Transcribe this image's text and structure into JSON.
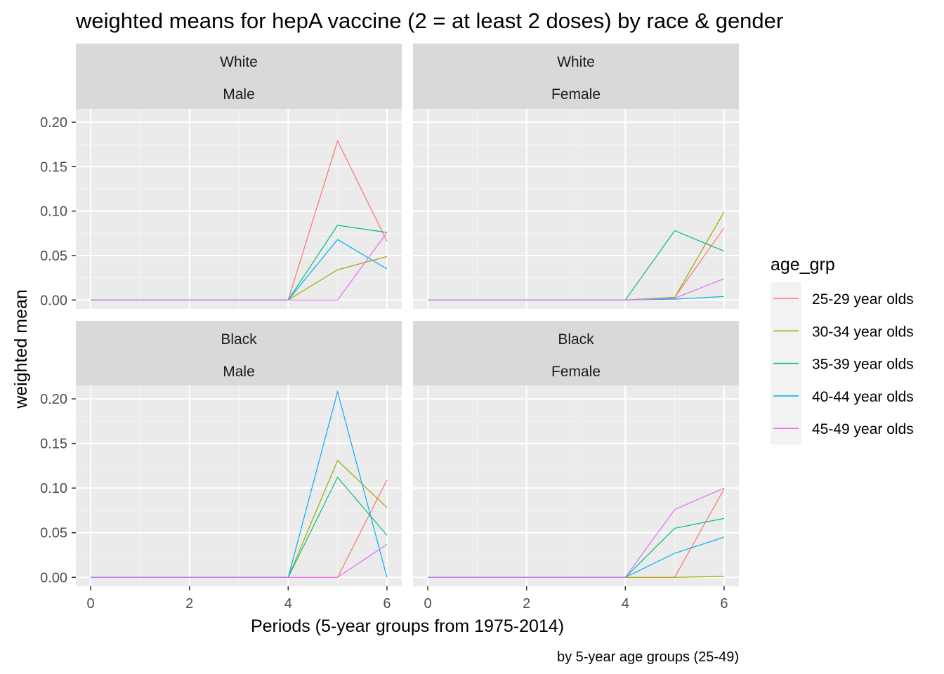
{
  "chart_data": {
    "type": "line",
    "title": "weighted means for hepA vaccine (2 = at least 2 doses)  by race & gender",
    "xlabel": "Periods (5-year groups from 1975-2014)",
    "ylabel": "weighted mean",
    "caption": "by 5-year age groups (25-49)",
    "xlim": [
      -0.3,
      6.3
    ],
    "ylim": [
      -0.01,
      0.215
    ],
    "x_ticks": [
      0,
      2,
      4,
      6
    ],
    "x_tick_labels": [
      "0",
      "2",
      "4",
      "6"
    ],
    "y_ticks": [
      0,
      0.05,
      0.1,
      0.15,
      0.2
    ],
    "y_tick_labels": [
      "0.00",
      "0.05",
      "0.10",
      "0.15",
      "0.20"
    ],
    "grid": true,
    "legend": {
      "title": "age_grp",
      "position": "right",
      "entries": [
        "25-29 year olds",
        "30-34 year olds",
        "35-39 year olds",
        "40-44 year olds",
        "45-49 year olds"
      ]
    },
    "colors": [
      "#F8766D",
      "#A3A500",
      "#00BF7D",
      "#00B0F6",
      "#E76BF3"
    ],
    "x": [
      0,
      1,
      2,
      3,
      4,
      5,
      6
    ],
    "panels": [
      {
        "strip": [
          "White",
          "Male"
        ],
        "series": [
          {
            "name": "25-29 year olds",
            "values": [
              0,
              0,
              0,
              0,
              0,
              0.179,
              0.066
            ]
          },
          {
            "name": "30-34 year olds",
            "values": [
              0,
              0,
              0,
              0,
              0,
              0.034,
              0.049
            ]
          },
          {
            "name": "35-39 year olds",
            "values": [
              0,
              0,
              0,
              0,
              0,
              0.084,
              0.076
            ]
          },
          {
            "name": "40-44 year olds",
            "values": [
              0,
              0,
              0,
              0,
              0,
              0.068,
              0.035
            ]
          },
          {
            "name": "45-49 year olds",
            "values": [
              0,
              0,
              0,
              0,
              0,
              0.0,
              0.076
            ]
          }
        ]
      },
      {
        "strip": [
          "White",
          "Female"
        ],
        "series": [
          {
            "name": "25-29 year olds",
            "values": [
              0,
              0,
              0,
              0,
              0,
              0.003,
              0.081
            ]
          },
          {
            "name": "30-34 year olds",
            "values": [
              0,
              0,
              0,
              0,
              0,
              0.003,
              0.099
            ]
          },
          {
            "name": "35-39 year olds",
            "values": [
              0,
              0,
              0,
              0,
              0,
              0.078,
              0.055
            ]
          },
          {
            "name": "40-44 year olds",
            "values": [
              0,
              0,
              0,
              0,
              0,
              0.001,
              0.004
            ]
          },
          {
            "name": "45-49 year olds",
            "values": [
              0,
              0,
              0,
              0,
              0,
              0.002,
              0.024
            ]
          }
        ]
      },
      {
        "strip": [
          "Black",
          "Male"
        ],
        "series": [
          {
            "name": "25-29 year olds",
            "values": [
              0,
              0,
              0,
              0,
              0,
              0.0,
              0.109
            ]
          },
          {
            "name": "30-34 year olds",
            "values": [
              0,
              0,
              0,
              0,
              0,
              0.131,
              0.078
            ]
          },
          {
            "name": "35-39 year olds",
            "values": [
              0,
              0,
              0,
              0,
              0,
              0.112,
              0.047
            ]
          },
          {
            "name": "40-44 year olds",
            "values": [
              0,
              0,
              0,
              0,
              0,
              0.208,
              0.0
            ]
          },
          {
            "name": "45-49 year olds",
            "values": [
              0,
              0,
              0,
              0,
              0,
              0.0,
              0.037
            ]
          }
        ]
      },
      {
        "strip": [
          "Black",
          "Female"
        ],
        "series": [
          {
            "name": "25-29 year olds",
            "values": [
              0,
              0,
              0,
              0,
              0,
              0.0,
              0.099
            ]
          },
          {
            "name": "30-34 year olds",
            "values": [
              0,
              0,
              0,
              0,
              0,
              0.0,
              0.001
            ]
          },
          {
            "name": "35-39 year olds",
            "values": [
              0,
              0,
              0,
              0,
              0,
              0.055,
              0.066
            ]
          },
          {
            "name": "40-44 year olds",
            "values": [
              0,
              0,
              0,
              0,
              0,
              0.027,
              0.045
            ]
          },
          {
            "name": "45-49 year olds",
            "values": [
              0,
              0,
              0,
              0,
              0,
              0.076,
              0.1
            ]
          }
        ]
      }
    ]
  }
}
